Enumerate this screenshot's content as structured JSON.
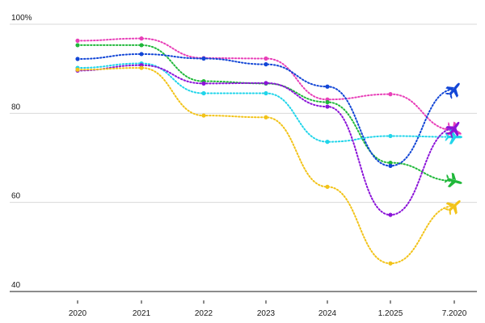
{
  "chart_data": {
    "type": "line",
    "title": "",
    "xlabel": "",
    "ylabel": "",
    "x": [
      "2020",
      "2021",
      "2022",
      "2023",
      "2024",
      "1.2025",
      "7.2020"
    ],
    "y_ticks": [
      {
        "value": 100,
        "label": "100%"
      },
      {
        "value": 80,
        "label": "80"
      },
      {
        "value": 60,
        "label": "60"
      },
      {
        "value": 40,
        "label": "40"
      }
    ],
    "ylim": [
      38,
      100
    ],
    "grid": true,
    "end_marker": "plane-icon",
    "series": [
      {
        "color": "#e83fb8",
        "values": [
          96.3,
          96.8,
          92.4,
          92.3,
          83.1,
          84.3,
          76.2
        ]
      },
      {
        "color": "#20b83a",
        "values": [
          95.3,
          95.3,
          87.2,
          86.7,
          82.5,
          68.9,
          64.8
        ]
      },
      {
        "color": "#1246d6",
        "values": [
          92.2,
          93.3,
          92.3,
          91.0,
          86.0,
          68.2,
          85.4
        ]
      },
      {
        "color": "#21d5ea",
        "values": [
          90.2,
          91.2,
          84.5,
          84.5,
          73.6,
          74.9,
          74.7
        ]
      },
      {
        "color": "#8b13d8",
        "values": [
          89.6,
          90.8,
          86.7,
          86.8,
          81.5,
          57.2,
          76.6
        ]
      },
      {
        "color": "#f2c319",
        "values": [
          89.8,
          90.2,
          79.5,
          79.1,
          63.5,
          46.3,
          59.2
        ]
      }
    ]
  }
}
